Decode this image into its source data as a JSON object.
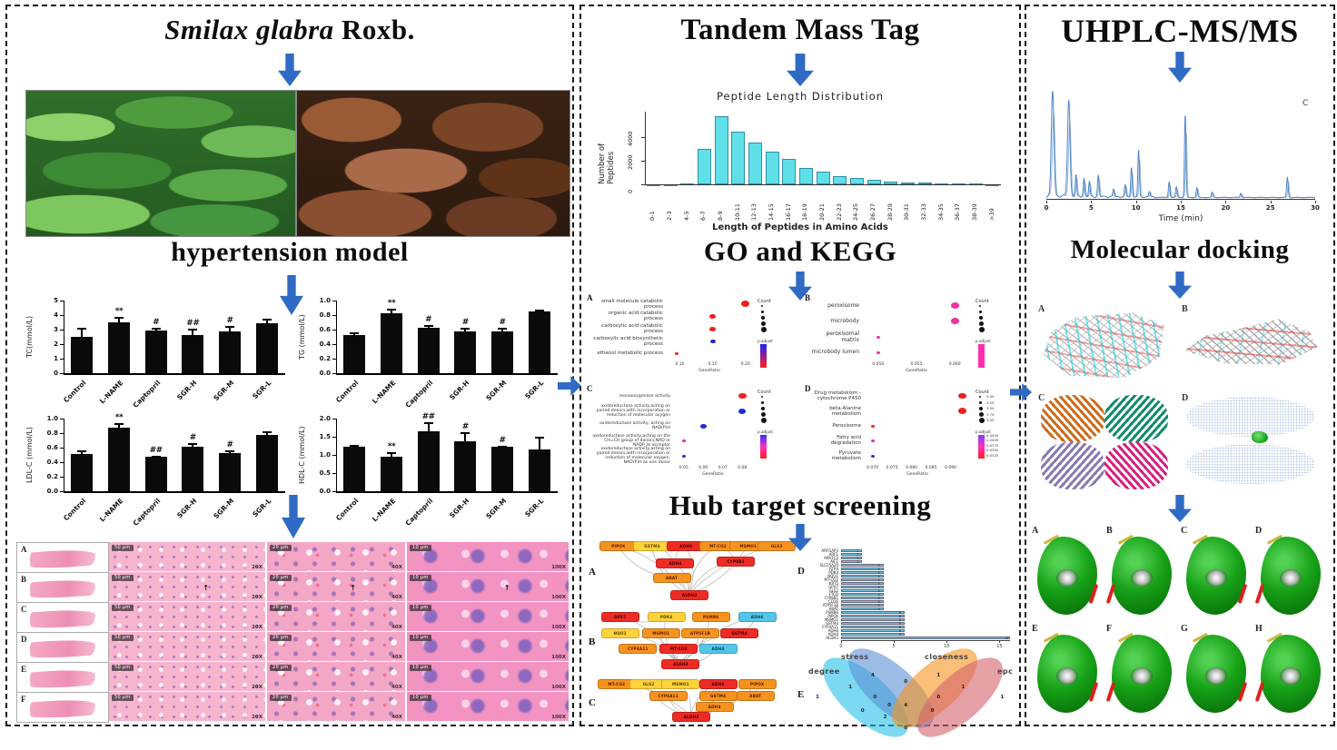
{
  "colors": {
    "arrow_blue": "#2f6bc4",
    "bar_black": "#0a0a0a",
    "histogram_bar": "#5fe0e8",
    "histogram_bar_border": "#2f8fa8",
    "hub_bar": "#6cc8ea",
    "dot_red": "#ee2020",
    "dot_blue": "#1f2bd8",
    "dot_magenta": "#e020c8",
    "dot_pink": "#f0309f",
    "node_orange": "#f6921e",
    "node_red": "#ee2b24",
    "node_yellow": "#fdd23a",
    "node_cyan": "#52c6ea",
    "venn_degree": "#25c0e8",
    "venn_stress": "#5b8fd4",
    "venn_closeness": "#f5921e",
    "venn_epc": "#d4626a",
    "chromatogram_trace": "#4d84c4",
    "surface_green": "#12a312"
  },
  "left": {
    "title_italic": "Smilax glabra",
    "title_rest": " Roxb.",
    "subtitle": "hypertension model",
    "photos": [
      {
        "name": "Smilax glabra plant leaves"
      },
      {
        "name": "dried rhizome slices"
      }
    ],
    "histology": {
      "row_labels": [
        "A",
        "B",
        "C",
        "D",
        "E",
        "F"
      ],
      "columns": [
        {
          "type": "whole-liver-section",
          "scale_bar": "",
          "magnification": ""
        },
        {
          "type": "micrograph",
          "scale_bar": "50 μm",
          "magnification": "20X"
        },
        {
          "type": "micrograph",
          "scale_bar": "20 μm",
          "magnification": "40X"
        },
        {
          "type": "micrograph",
          "scale_bar": "10 μm",
          "magnification": "100X"
        }
      ],
      "arrow_annotation_row": "B",
      "arrow_glyph": "↑"
    }
  },
  "middle": {
    "title1": "Tandem Mass Tag",
    "title2": "GO and KEGG",
    "title3": "Hub target screening",
    "hub_panel_labels": {
      "network_a": "A",
      "network_b": "B",
      "network_c": "C",
      "bar": "D",
      "venn": "E"
    }
  },
  "right": {
    "title1": "UHPLC-MS/MS",
    "title2": "Molecular docking",
    "docking_panel_labels": [
      "A",
      "B",
      "C",
      "D"
    ],
    "surface_panel_labels": [
      "A",
      "B",
      "C",
      "D",
      "E",
      "F",
      "G",
      "H"
    ]
  },
  "chart_data": [
    {
      "id": "tc",
      "type": "bar",
      "ylabel": "TC(mmol/L)",
      "categories": [
        "Control",
        "L-NAME",
        "Captopril",
        "SGR-H",
        "SGR-M",
        "SGR-L"
      ],
      "values": [
        2.5,
        3.5,
        2.95,
        2.6,
        2.9,
        3.45
      ],
      "errors": [
        0.6,
        0.35,
        0.2,
        0.45,
        0.35,
        0.3
      ],
      "annotations": [
        "",
        "**",
        "#",
        "##",
        "#",
        ""
      ],
      "ylim": [
        0,
        5
      ],
      "yticks": [
        0,
        1,
        2,
        3,
        4,
        5
      ],
      "ytick_decimals": 0
    },
    {
      "id": "tg",
      "type": "bar",
      "ylabel": "TG (mmol/L)",
      "categories": [
        "Control",
        "L-NAME",
        "Captopril",
        "SGR-H",
        "SGR-M",
        "SGR-L"
      ],
      "values": [
        0.52,
        0.82,
        0.62,
        0.57,
        0.57,
        0.85
      ],
      "errors": [
        0.04,
        0.07,
        0.04,
        0.05,
        0.05,
        0.02
      ],
      "annotations": [
        "",
        "**",
        "#",
        "#",
        "#",
        ""
      ],
      "ylim": [
        0,
        1
      ],
      "yticks": [
        0,
        0.2,
        0.4,
        0.6,
        0.8,
        1.0
      ],
      "ytick_decimals": 1
    },
    {
      "id": "ldl",
      "type": "bar",
      "ylabel": "LDL-C (mmol/L)",
      "categories": [
        "Control",
        "L-NAME",
        "Captopril",
        "SGR-H",
        "SGR-M",
        "SGR-L"
      ],
      "values": [
        0.51,
        0.88,
        0.47,
        0.61,
        0.53,
        0.78
      ],
      "errors": [
        0.05,
        0.06,
        0.02,
        0.05,
        0.03,
        0.04
      ],
      "annotations": [
        "",
        "**",
        "##",
        "#",
        "#",
        ""
      ],
      "ylim": [
        0,
        1
      ],
      "yticks": [
        0,
        0.2,
        0.4,
        0.6,
        0.8,
        1.0
      ],
      "ytick_decimals": 1
    },
    {
      "id": "hdl",
      "type": "bar",
      "ylabel": "HDL-C (mmol/L)",
      "categories": [
        "Control",
        "L-NAME",
        "Captopril",
        "SGR-H",
        "SGR-M",
        "SGR-L"
      ],
      "values": [
        1.22,
        0.95,
        1.65,
        1.38,
        1.22,
        1.15
      ],
      "errors": [
        0.05,
        0.12,
        0.24,
        0.25,
        0.04,
        0.36
      ],
      "annotations": [
        "",
        "**",
        "##",
        "#",
        "#",
        ""
      ],
      "ylim": [
        0,
        2
      ],
      "yticks": [
        0,
        0.5,
        1.0,
        1.5,
        2.0
      ],
      "ytick_decimals": 1
    },
    {
      "id": "peptide",
      "type": "bar",
      "title": "Peptide Length Distribution",
      "xlabel": "Length of Peptides in Amino Acids",
      "ylabel": "Number of Peptides",
      "categories": [
        "0-1",
        "2-3",
        "4-5",
        "6-7",
        "8-9",
        "10-11",
        "12-13",
        "14-15",
        "16-17",
        "18-19",
        "20-21",
        "22-23",
        "24-25",
        "26-27",
        "28-29",
        "30-31",
        "32-33",
        "34-35",
        "36-37",
        "38-39",
        ">39"
      ],
      "values": [
        15,
        20,
        60,
        3000,
        5800,
        4500,
        3600,
        2800,
        2200,
        1400,
        1050,
        700,
        550,
        380,
        260,
        180,
        130,
        80,
        50,
        40,
        30
      ],
      "yticks": [
        0,
        2000,
        4000
      ],
      "ylim": [
        0,
        6200
      ]
    },
    {
      "id": "go_a",
      "type": "scatter",
      "panel": "A",
      "xlabel": "GeneRatio",
      "terms": [
        "small molecule catabolic process",
        "organic acid catabolic process",
        "carboxylic acid catabolic process",
        "carboxylic acid biosynthetic process",
        "ethanol metabolic process"
      ],
      "x": [
        0.2,
        0.15,
        0.15,
        0.15,
        0.095
      ],
      "sizes": [
        9,
        7,
        7,
        6,
        4
      ],
      "colors": [
        "red",
        "red",
        "red",
        "blue",
        "red"
      ],
      "xticks": [
        "0.10",
        "0.15",
        "0.20"
      ],
      "xlim": [
        0.08,
        0.21
      ],
      "legend": {
        "count_label": "Count",
        "padjust_label": "p.adjust",
        "gradient": [
          "#2020ff",
          "#ff2020"
        ]
      }
    },
    {
      "id": "go_b",
      "type": "scatter",
      "panel": "B",
      "xlabel": "GeneRatio",
      "terms": [
        "peroxisome",
        "microbody",
        "peroxisomal matrix",
        "microbody lumen"
      ],
      "x": [
        0.06,
        0.06,
        0.05,
        0.05
      ],
      "sizes": [
        9,
        9,
        4,
        4
      ],
      "colors": [
        "pink",
        "pink",
        "pink",
        "pink"
      ],
      "xticks": [
        "0.050",
        "0.055",
        "0.060"
      ],
      "xlim": [
        0.048,
        0.062
      ],
      "legend": {
        "count_label": "Count",
        "padjust_label": "p.adjust",
        "gradient": [
          "#ff30b0",
          "#ff2bb0"
        ]
      }
    },
    {
      "id": "go_c",
      "type": "scatter",
      "panel": "C",
      "xlabel": "GeneRatio",
      "terms": [
        "monooxygenase activity",
        "oxidoreductase activity,acting on paired donors,with incorporation or reduction of molecular oxygen",
        "oxidoreductase activity, acting on NAD(P)H",
        "oxidoreductase activity,acting on the CH=CH group of donors,NAD or NADP as acceptor",
        "oxidoreductase activity,acting on paired donors,with incorporation or reduction of molecular oxygen, NAD(P)H as one donor"
      ],
      "x": [
        0.08,
        0.08,
        0.06,
        0.05,
        0.05
      ],
      "sizes": [
        9,
        8,
        7,
        4,
        4
      ],
      "colors": [
        "red",
        "blue",
        "blue",
        "magenta",
        "blue"
      ],
      "xticks": [
        "0.05",
        "0.06",
        "0.07",
        "0.08"
      ],
      "xlim": [
        0.045,
        0.085
      ],
      "legend": {
        "count_label": "Count",
        "padjust_label": "p.adjust",
        "gradient": [
          "#3030ff",
          "#ff30c0",
          "#ff2020"
        ]
      }
    },
    {
      "id": "go_d",
      "type": "scatter",
      "panel": "D",
      "xlabel": "GeneRatio",
      "terms": [
        "Drug metabolism - cytochrome P450",
        "beta-Alanine metabolism",
        "Peroxisome",
        "Fatty acid degradation",
        "Pyruvate metabolism"
      ],
      "x": [
        0.093,
        0.093,
        0.07,
        0.07,
        0.07
      ],
      "sizes": [
        9,
        9,
        4,
        4,
        4
      ],
      "colors": [
        "red",
        "red",
        "red",
        "magenta",
        "blue"
      ],
      "xticks": [
        "0.070",
        "0.075",
        "0.080",
        "0.085",
        "0.090"
      ],
      "xlim": [
        0.068,
        0.095
      ],
      "legend": {
        "count_label": "Count",
        "count_values": [
          "3.00",
          "3.25",
          "3.50",
          "3.75",
          "4.00"
        ],
        "padjust_label": "p.adjust",
        "padjust_values": [
          "0.0425",
          "0.0400",
          "0.0375",
          "0.0350",
          "0.0325"
        ],
        "gradient": [
          "#8040ff",
          "#ff30c0",
          "#ff2020"
        ]
      }
    },
    {
      "id": "hub_genes",
      "type": "bar",
      "panel": "D",
      "categories": [
        "ARFGAP3",
        "ARF1",
        "AKR1C2",
        "AIF1",
        "SLC25A20",
        "RTP4",
        "PDK4",
        "NQO1",
        "MT-CO2",
        "KRT5",
        "GPX7",
        "GLS2",
        "FTCD",
        "CYP8B1",
        "CD36",
        "ATP5F1B",
        "ABAT",
        "PSMB6",
        "PIPOX",
        "MSMO1",
        "GSTM4",
        "CYP4A11",
        "ADH6",
        "ADH4",
        "ALDH2"
      ],
      "values": [
        2,
        2,
        2,
        2,
        4,
        4,
        4,
        4,
        4,
        4,
        4,
        4,
        4,
        4,
        4,
        4,
        4,
        6,
        6,
        6,
        6,
        6,
        6,
        6,
        16
      ],
      "xticks": [
        0,
        5,
        10,
        15
      ],
      "xlim": [
        0,
        16
      ]
    },
    {
      "id": "venn",
      "type": "venn",
      "panel": "E",
      "sets": [
        "degree",
        "stress",
        "closeness",
        "epc"
      ],
      "region_values": {
        "A": 1,
        "B": 4,
        "C": 1,
        "D": 1,
        "AB": 1,
        "AC": 0,
        "AD": 0,
        "BC": 0,
        "BD": 0,
        "CD": 1,
        "ABC": 0,
        "ABD": 0,
        "ACD": 2,
        "BCD": 0,
        "ABCD": 4
      }
    },
    {
      "id": "chromatogram",
      "type": "line",
      "xlabel": "Time (min)",
      "xticks": [
        0,
        5,
        10,
        15,
        20,
        25,
        30
      ],
      "xlim": [
        0,
        30
      ],
      "corner_label": "C",
      "peaks": [
        {
          "t": 0.7,
          "h": 1.0
        },
        {
          "t": 2.5,
          "h": 0.9
        },
        {
          "t": 3.3,
          "h": 0.2
        },
        {
          "t": 4.2,
          "h": 0.17
        },
        {
          "t": 4.8,
          "h": 0.14
        },
        {
          "t": 5.8,
          "h": 0.2
        },
        {
          "t": 7.5,
          "h": 0.07
        },
        {
          "t": 8.8,
          "h": 0.11
        },
        {
          "t": 9.5,
          "h": 0.28
        },
        {
          "t": 10.3,
          "h": 0.44
        },
        {
          "t": 11.5,
          "h": 0.05
        },
        {
          "t": 13.7,
          "h": 0.15
        },
        {
          "t": 14.5,
          "h": 0.1
        },
        {
          "t": 15.5,
          "h": 0.78
        },
        {
          "t": 16.8,
          "h": 0.09
        },
        {
          "t": 18.5,
          "h": 0.05
        },
        {
          "t": 21.7,
          "h": 0.04
        },
        {
          "t": 26.9,
          "h": 0.19
        }
      ]
    }
  ],
  "network_data": {
    "panels": [
      {
        "letter": "A",
        "nodes": [
          {
            "l": "PIPOX",
            "c": "orange",
            "x": 0.06,
            "y": 0.08
          },
          {
            "l": "GSTM4",
            "c": "yellow",
            "x": 0.25,
            "y": 0.08
          },
          {
            "l": "ADH6",
            "c": "red",
            "x": 0.44,
            "y": 0.08
          },
          {
            "l": "MT-CO2",
            "c": "orange",
            "x": 0.62,
            "y": 0.08
          },
          {
            "l": "MSMO1",
            "c": "orange",
            "x": 0.79,
            "y": 0.08
          },
          {
            "l": "GLS2",
            "c": "orange",
            "x": 0.95,
            "y": 0.08
          },
          {
            "l": "ADH4",
            "c": "red",
            "x": 0.38,
            "y": 0.36
          },
          {
            "l": "CYP8B1",
            "c": "red",
            "x": 0.72,
            "y": 0.33
          },
          {
            "l": "ABAT",
            "c": "orange",
            "x": 0.36,
            "y": 0.6
          },
          {
            "l": "ALDH2",
            "c": "red",
            "x": 0.46,
            "y": 0.88
          }
        ],
        "edges": [
          [
            0,
            9
          ],
          [
            1,
            9
          ],
          [
            2,
            9
          ],
          [
            3,
            9
          ],
          [
            4,
            9
          ],
          [
            5,
            9
          ],
          [
            6,
            9
          ],
          [
            7,
            9
          ],
          [
            8,
            9
          ],
          [
            0,
            8
          ],
          [
            1,
            6
          ],
          [
            2,
            6
          ],
          [
            3,
            7
          ]
        ]
      },
      {
        "letter": "B",
        "nodes": [
          {
            "l": "GPX7",
            "c": "red",
            "x": 0.07,
            "y": 0.08
          },
          {
            "l": "PDK4",
            "c": "yellow",
            "x": 0.33,
            "y": 0.08
          },
          {
            "l": "PSMB6",
            "c": "orange",
            "x": 0.58,
            "y": 0.08
          },
          {
            "l": "ADH6",
            "c": "cyan",
            "x": 0.84,
            "y": 0.08
          },
          {
            "l": "NQO1",
            "c": "yellow",
            "x": 0.07,
            "y": 0.36
          },
          {
            "l": "MSMO1",
            "c": "orange",
            "x": 0.3,
            "y": 0.36
          },
          {
            "l": "ATP5F1B",
            "c": "orange",
            "x": 0.52,
            "y": 0.36
          },
          {
            "l": "GSTM4",
            "c": "red",
            "x": 0.74,
            "y": 0.36
          },
          {
            "l": "CYP4A11",
            "c": "orange",
            "x": 0.17,
            "y": 0.62
          },
          {
            "l": "MT-CO2",
            "c": "red",
            "x": 0.4,
            "y": 0.62
          },
          {
            "l": "ADH4",
            "c": "cyan",
            "x": 0.62,
            "y": 0.62
          },
          {
            "l": "ALDH2",
            "c": "red",
            "x": 0.41,
            "y": 0.88
          }
        ],
        "edges": [
          [
            0,
            11
          ],
          [
            1,
            11
          ],
          [
            2,
            11
          ],
          [
            3,
            11
          ],
          [
            4,
            11
          ],
          [
            5,
            11
          ],
          [
            6,
            11
          ],
          [
            7,
            11
          ],
          [
            8,
            11
          ],
          [
            9,
            11
          ],
          [
            10,
            11
          ],
          [
            0,
            1
          ],
          [
            3,
            7
          ]
        ]
      },
      {
        "letter": "C",
        "nodes": [
          {
            "l": "MT-CO2",
            "c": "orange",
            "x": 0.05,
            "y": 0.08
          },
          {
            "l": "GLS2",
            "c": "yellow",
            "x": 0.23,
            "y": 0.08
          },
          {
            "l": "MSMO1",
            "c": "yellow",
            "x": 0.41,
            "y": 0.08
          },
          {
            "l": "ADH6",
            "c": "red",
            "x": 0.62,
            "y": 0.08
          },
          {
            "l": "PIPOX",
            "c": "orange",
            "x": 0.84,
            "y": 0.08
          },
          {
            "l": "CYP4A11",
            "c": "orange",
            "x": 0.34,
            "y": 0.38
          },
          {
            "l": "GSTM4",
            "c": "orange",
            "x": 0.62,
            "y": 0.38
          },
          {
            "l": "ABAT",
            "c": "orange",
            "x": 0.83,
            "y": 0.38
          },
          {
            "l": "ADH4",
            "c": "orange",
            "x": 0.6,
            "y": 0.64
          },
          {
            "l": "ALDH2",
            "c": "red",
            "x": 0.47,
            "y": 0.9
          }
        ],
        "edges": [
          [
            0,
            9
          ],
          [
            1,
            9
          ],
          [
            2,
            9
          ],
          [
            3,
            9
          ],
          [
            4,
            9
          ],
          [
            5,
            9
          ],
          [
            6,
            9
          ],
          [
            7,
            9
          ],
          [
            8,
            9
          ],
          [
            3,
            8
          ],
          [
            3,
            6
          ],
          [
            6,
            8
          ],
          [
            4,
            7
          ]
        ]
      }
    ]
  }
}
